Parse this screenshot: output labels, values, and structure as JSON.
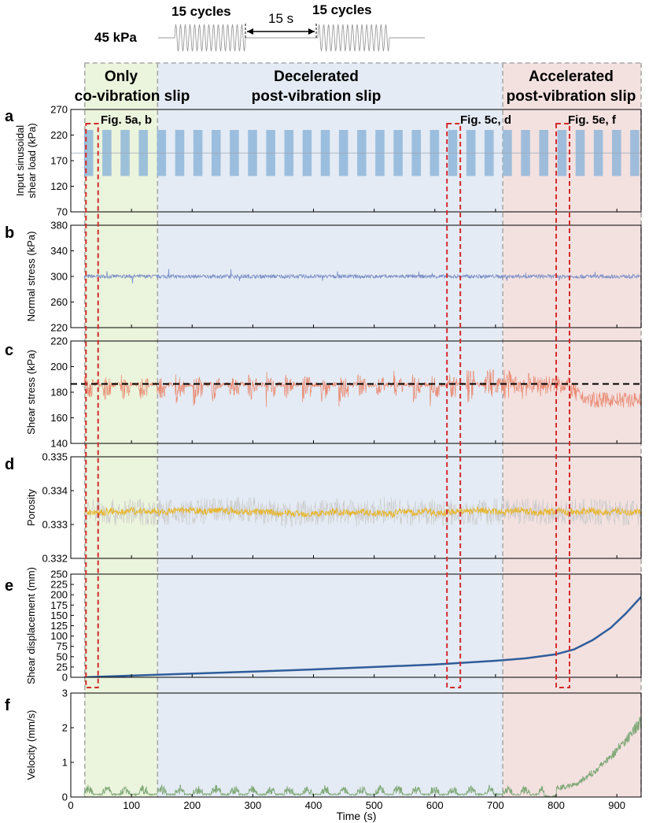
{
  "schematic": {
    "amplitude_label": "45 kPa",
    "cycles_left_label": "15 cycles",
    "cycles_right_label": "15 cycles",
    "gap_label": "15 s"
  },
  "regions": [
    {
      "line1": "Only",
      "line2": "co-vibration slip",
      "t_start": 23,
      "t_end": 143,
      "color": "#e7f2d6"
    },
    {
      "line1": "Decelerated",
      "line2": "post-vibration slip",
      "t_start": 143,
      "t_end": 712,
      "color": "#dfe8f2"
    },
    {
      "line1": "Accelerated",
      "line2": "post-vibration slip",
      "t_start": 712,
      "t_end": 940,
      "color": "#f1dcda"
    }
  ],
  "highlights": [
    {
      "label": "Fig. 5a, b",
      "t_start": 25,
      "t_end": 45
    },
    {
      "label": "Fig. 5c, d",
      "t_start": 620,
      "t_end": 642
    },
    {
      "label": "Fig. 5e, f",
      "t_start": 800,
      "t_end": 822
    }
  ],
  "x_axis": {
    "label": "Time (s)",
    "range": [
      0,
      940
    ],
    "ticks": [
      0,
      100,
      200,
      300,
      400,
      500,
      600,
      700,
      800,
      900
    ]
  },
  "chart_data": [
    {
      "panel": "a",
      "type": "line",
      "title": "",
      "ylabel_lines": [
        "Input sinusoidal",
        "shear load (kPa)"
      ],
      "ylim": [
        70,
        270
      ],
      "yticks": [
        70,
        120,
        170,
        220,
        270
      ],
      "series": [
        {
          "name": "Input sinusoidal shear load",
          "color": "#8fb6d9",
          "pattern": "sinusoid_bursts",
          "mean": 185,
          "amplitude": 45,
          "burst_duration_s": 15,
          "gap_s": 15,
          "n_bursts": 31,
          "start_s": 22
        }
      ]
    },
    {
      "panel": "b",
      "type": "line",
      "title": "",
      "ylabel_lines": [
        "Normal stress (kPa)"
      ],
      "ylim": [
        220,
        380
      ],
      "yticks": [
        220,
        260,
        300,
        340,
        380
      ],
      "series": [
        {
          "name": "Normal stress",
          "color": "#7b8fc6",
          "pattern": "noise",
          "mean": 300,
          "amplitude": 5
        }
      ]
    },
    {
      "panel": "c",
      "type": "line",
      "title": "",
      "ylabel_lines": [
        "Shear stress (kPa)"
      ],
      "ylim": [
        140,
        220
      ],
      "yticks": [
        140,
        160,
        180,
        200,
        220
      ],
      "reference_line": 186.5,
      "series": [
        {
          "name": "Shear stress",
          "color": "#e98a72",
          "pattern": "vibration_response",
          "base": 186,
          "max_early": 205,
          "min_early": 153,
          "late_mean": 174
        }
      ]
    },
    {
      "panel": "d",
      "type": "line",
      "title": "",
      "ylabel_lines": [
        "Porosity"
      ],
      "ylim": [
        0.332,
        0.335
      ],
      "yticks": [
        0.332,
        0.333,
        0.334,
        0.335
      ],
      "series": [
        {
          "name": "Porosity (raw)",
          "color": "#c9c9c9",
          "pattern": "noise",
          "mean": 0.33337,
          "amplitude": 0.0004
        },
        {
          "name": "Porosity (smoothed)",
          "color": "#e7b52b",
          "pattern": "noise",
          "mean": 0.33337,
          "amplitude": 0.00015
        }
      ]
    },
    {
      "panel": "e",
      "type": "line",
      "title": "",
      "ylabel_lines": [
        "Shear displacement (mm)"
      ],
      "ylim": [
        0,
        250
      ],
      "yticks": [
        0,
        25,
        50,
        75,
        100,
        125,
        150,
        175,
        200,
        225,
        250
      ],
      "series": [
        {
          "name": "Shear displacement",
          "color": "#2f5d9b",
          "x": [
            22,
            100,
            200,
            300,
            400,
            500,
            600,
            700,
            750,
            800,
            830,
            860,
            890,
            915,
            940
          ],
          "y": [
            0,
            4,
            9,
            14,
            19,
            25,
            31,
            40,
            46,
            56,
            68,
            90,
            120,
            155,
            195
          ]
        }
      ]
    },
    {
      "panel": "f",
      "type": "line",
      "title": "",
      "ylabel_lines": [
        "Velocity (mm/s)"
      ],
      "ylim": [
        0,
        3
      ],
      "yticks": [
        0,
        1,
        2,
        3
      ],
      "series": [
        {
          "name": "Velocity",
          "color": "#7fa877",
          "pattern": "vibration_bursts",
          "burst_peak": 0.35,
          "baseline": 0.08,
          "x": [
            800,
            830,
            860,
            880,
            900,
            920,
            940
          ],
          "y": [
            0.25,
            0.35,
            0.7,
            1.0,
            1.35,
            1.75,
            2.2
          ]
        }
      ]
    }
  ]
}
